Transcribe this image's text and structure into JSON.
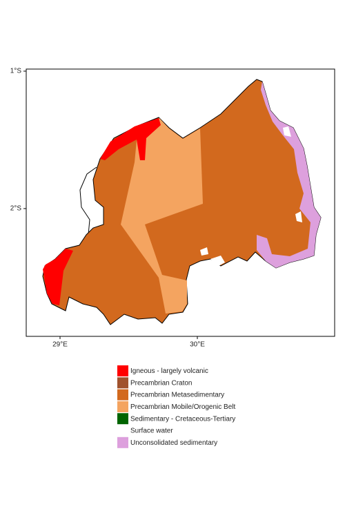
{
  "map": {
    "y_ticks": [
      "1°S",
      "2°S"
    ],
    "x_ticks": [
      "29°E",
      "30°E"
    ]
  },
  "legend": [
    {
      "label": "Igneous - largely volcanic",
      "color": "#ff0000"
    },
    {
      "label": "Precambrian Craton",
      "color": "#a0522d"
    },
    {
      "label": "Precambrian Metasedimentary",
      "color": "#d2691e"
    },
    {
      "label": "Precambrian Mobile/Orogenic Belt",
      "color": "#f4a460"
    },
    {
      "label": "Sedimentary - Cretaceous-Tertiary",
      "color": "#006400"
    },
    {
      "label": "Surface water",
      "color": "#ffffff"
    },
    {
      "label": "Unconsolidated sedimentary",
      "color": "#dda0dd"
    }
  ]
}
